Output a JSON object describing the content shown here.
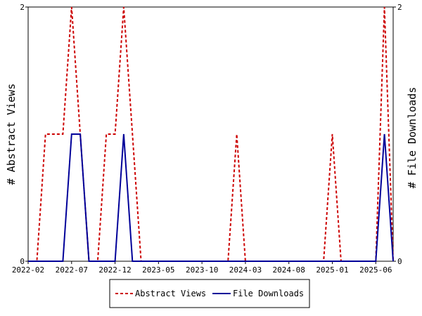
{
  "chart_data": {
    "type": "line",
    "title": "",
    "ylabel_left": "# Abstract Views",
    "ylabel_right": "# File Downloads",
    "x_ticks": [
      "2022-02",
      "2022-07",
      "2022-12",
      "2023-05",
      "2023-10",
      "2024-03",
      "2024-08",
      "2025-01",
      "2025-06"
    ],
    "y_left": {
      "min": 0,
      "max": 2,
      "ticks": [
        "0",
        "2"
      ]
    },
    "y_right": {
      "min": 0,
      "max": 2,
      "ticks": [
        "0",
        "2"
      ]
    },
    "grid": false,
    "legend_position": "bottom-center",
    "series": [
      {
        "name": "Abstract Views",
        "axis": "left",
        "color": "#cc0000",
        "style": "dashed",
        "x": [
          "2022-02",
          "2022-03",
          "2022-04",
          "2022-05",
          "2022-06",
          "2022-07",
          "2022-08",
          "2022-09",
          "2022-10",
          "2022-11",
          "2022-12",
          "2023-01",
          "2023-02",
          "2023-03",
          "2023-04",
          "2023-05",
          "2023-06",
          "2023-07",
          "2023-08",
          "2023-09",
          "2023-10",
          "2023-11",
          "2023-12",
          "2024-01",
          "2024-02",
          "2024-03",
          "2024-04",
          "2024-05",
          "2024-06",
          "2024-07",
          "2024-08",
          "2024-09",
          "2024-10",
          "2024-11",
          "2024-12",
          "2025-01",
          "2025-02",
          "2025-03",
          "2025-04",
          "2025-05",
          "2025-06",
          "2025-07",
          "2025-08"
        ],
        "values": [
          0,
          0,
          1,
          1,
          1,
          2,
          1,
          0,
          0,
          1,
          1,
          2,
          1,
          0,
          0,
          0,
          0,
          0,
          0,
          0,
          0,
          0,
          0,
          0,
          1,
          0,
          0,
          0,
          0,
          0,
          0,
          0,
          0,
          0,
          0,
          1,
          0,
          0,
          0,
          0,
          0,
          2,
          0
        ]
      },
      {
        "name": "File Downloads",
        "axis": "right",
        "color": "#000099",
        "style": "solid",
        "x": [
          "2022-02",
          "2022-03",
          "2022-04",
          "2022-05",
          "2022-06",
          "2022-07",
          "2022-08",
          "2022-09",
          "2022-10",
          "2022-11",
          "2022-12",
          "2023-01",
          "2023-02",
          "2023-03",
          "2023-04",
          "2023-05",
          "2023-06",
          "2023-07",
          "2023-08",
          "2023-09",
          "2023-10",
          "2023-11",
          "2023-12",
          "2024-01",
          "2024-02",
          "2024-03",
          "2024-04",
          "2024-05",
          "2024-06",
          "2024-07",
          "2024-08",
          "2024-09",
          "2024-10",
          "2024-11",
          "2024-12",
          "2025-01",
          "2025-02",
          "2025-03",
          "2025-04",
          "2025-05",
          "2025-06",
          "2025-07",
          "2025-08"
        ],
        "values": [
          0,
          0,
          0,
          0,
          0,
          1,
          1,
          0,
          0,
          0,
          0,
          1,
          0,
          0,
          0,
          0,
          0,
          0,
          0,
          0,
          0,
          0,
          0,
          0,
          0,
          0,
          0,
          0,
          0,
          0,
          0,
          0,
          0,
          0,
          0,
          0,
          0,
          0,
          0,
          0,
          0,
          1,
          0
        ]
      }
    ]
  }
}
